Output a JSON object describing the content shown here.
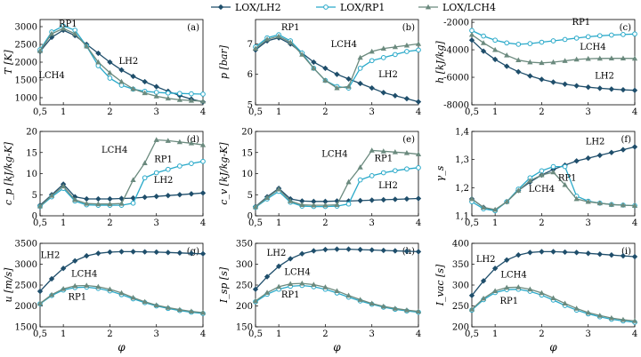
{
  "legend": {
    "items": [
      {
        "label": "LOX/LH2",
        "color": "#1f4e6b",
        "marker": "diamond"
      },
      {
        "label": "LOX/RP1",
        "color": "#29a9c9",
        "marker": "circle"
      },
      {
        "label": "LOX/LCH4",
        "color": "#6b8a7e",
        "marker": "triangle"
      }
    ]
  },
  "chart_data": [
    {
      "type": "line",
      "panel": "(a)",
      "ylabel": "T [K]",
      "xlabel": "",
      "xlim": [
        0.5,
        4
      ],
      "ylim": [
        800,
        3200
      ],
      "xticks": [
        "0,5",
        "1",
        "2",
        "3",
        "4"
      ],
      "yticks": [
        "1000",
        "1500",
        "2000",
        "2500",
        "3000"
      ],
      "x": [
        0.5,
        0.75,
        1.0,
        1.25,
        1.5,
        1.75,
        2.0,
        2.25,
        2.5,
        2.75,
        3.0,
        3.25,
        3.5,
        3.75,
        4.0
      ],
      "series": [
        {
          "name": "LOX/LH2",
          "values": [
            2300,
            2700,
            2900,
            2750,
            2500,
            2250,
            2000,
            1780,
            1600,
            1450,
            1310,
            1180,
            1060,
            960,
            880
          ]
        },
        {
          "name": "LOX/RP1",
          "values": [
            2350,
            2850,
            3020,
            2900,
            2450,
            1900,
            1550,
            1350,
            1240,
            1180,
            1150,
            1130,
            1120,
            1110,
            1100
          ]
        },
        {
          "name": "LOX/LCH4",
          "values": [
            2320,
            2800,
            2950,
            2800,
            2450,
            2000,
            1700,
            1450,
            1250,
            1130,
            1040,
            980,
            940,
            920,
            900
          ]
        }
      ],
      "labels": [
        {
          "text": "RP1",
          "x": 1.1,
          "y": 3000
        },
        {
          "text": "LH2",
          "x": 2.4,
          "y": 1950
        },
        {
          "text": "LCH4",
          "x": 0.75,
          "y": 1550
        }
      ]
    },
    {
      "type": "line",
      "panel": "(b)",
      "ylabel": "p [bar]",
      "xlabel": "",
      "xlim": [
        0.5,
        4
      ],
      "ylim": [
        5,
        7.8
      ],
      "xticks": [
        "0,5",
        "1",
        "2",
        "3",
        "4"
      ],
      "yticks": [
        "5",
        "6",
        "7"
      ],
      "x": [
        0.5,
        0.75,
        1.0,
        1.25,
        1.5,
        1.75,
        2.0,
        2.25,
        2.5,
        2.75,
        3.0,
        3.25,
        3.5,
        3.75,
        4.0
      ],
      "series": [
        {
          "name": "LOX/LH2",
          "values": [
            6.8,
            7.1,
            7.2,
            7.0,
            6.7,
            6.4,
            6.2,
            6.0,
            5.85,
            5.7,
            5.55,
            5.4,
            5.3,
            5.2,
            5.1
          ]
        },
        {
          "name": "LOX/RP1",
          "values": [
            6.9,
            7.2,
            7.3,
            7.1,
            6.7,
            6.2,
            5.8,
            5.6,
            5.55,
            6.2,
            6.45,
            6.55,
            6.65,
            6.75,
            6.8
          ]
        },
        {
          "name": "LOX/LCH4",
          "values": [
            6.85,
            7.15,
            7.25,
            7.05,
            6.65,
            6.2,
            5.8,
            5.55,
            5.6,
            6.55,
            6.75,
            6.85,
            6.9,
            6.95,
            7.0
          ]
        }
      ],
      "labels": [
        {
          "text": "RP1",
          "x": 1.25,
          "y": 7.45
        },
        {
          "text": "LCH4",
          "x": 2.4,
          "y": 6.9
        },
        {
          "text": "LH2",
          "x": 3.35,
          "y": 5.9
        }
      ]
    },
    {
      "type": "line",
      "panel": "(c)",
      "ylabel": "h [kJ/kg]",
      "xlabel": "",
      "xlim": [
        0.5,
        4
      ],
      "ylim": [
        -8000,
        -1800
      ],
      "xticks": [
        "0,5",
        "1",
        "2",
        "3",
        "4"
      ],
      "yticks": [
        "-8000",
        "-6000",
        "-4000",
        "-2000"
      ],
      "x": [
        0.5,
        0.75,
        1.0,
        1.25,
        1.5,
        1.75,
        2.0,
        2.25,
        2.5,
        2.75,
        3.0,
        3.25,
        3.5,
        3.75,
        4.0
      ],
      "series": [
        {
          "name": "LOX/LH2",
          "values": [
            -3300,
            -4100,
            -4700,
            -5200,
            -5600,
            -5900,
            -6150,
            -6350,
            -6500,
            -6620,
            -6720,
            -6800,
            -6860,
            -6910,
            -6950
          ]
        },
        {
          "name": "LOX/RP1",
          "values": [
            -2600,
            -3000,
            -3300,
            -3500,
            -3600,
            -3550,
            -3450,
            -3350,
            -3250,
            -3150,
            -3050,
            -2980,
            -2930,
            -2890,
            -2850
          ]
        },
        {
          "name": "LOX/LCH4",
          "values": [
            -2900,
            -3500,
            -4000,
            -4400,
            -4750,
            -4900,
            -4950,
            -4900,
            -4800,
            -4700,
            -4650,
            -4630,
            -4620,
            -4620,
            -4630
          ]
        }
      ],
      "labels": [
        {
          "text": "RP1",
          "x": 2.85,
          "y": -2200
        },
        {
          "text": "LCH4",
          "x": 3.1,
          "y": -4000
        },
        {
          "text": "LH2",
          "x": 3.35,
          "y": -6100
        }
      ]
    },
    {
      "type": "line",
      "panel": "(d)",
      "ylabel": "c_p [kJ/kg-K]",
      "xlabel": "",
      "xlim": [
        0.5,
        4
      ],
      "ylim": [
        0,
        20
      ],
      "xticks": [
        "0,5",
        "1",
        "2",
        "3",
        "4"
      ],
      "yticks": [
        "0",
        "5",
        "10",
        "15",
        "20"
      ],
      "x": [
        0.5,
        0.75,
        1.0,
        1.25,
        1.5,
        1.75,
        2.0,
        2.25,
        2.5,
        2.75,
        3.0,
        3.25,
        3.5,
        3.75,
        4.0
      ],
      "series": [
        {
          "name": "LOX/LH2",
          "values": [
            2.5,
            5.0,
            7.5,
            4.5,
            4.0,
            4.0,
            4.0,
            4.1,
            4.2,
            4.4,
            4.6,
            4.8,
            5.0,
            5.2,
            5.4
          ]
        },
        {
          "name": "LOX/RP1",
          "values": [
            2.2,
            4.5,
            6.5,
            3.5,
            2.6,
            2.5,
            2.5,
            2.5,
            3.0,
            9.0,
            10.2,
            11.0,
            11.8,
            12.4,
            12.9
          ]
        },
        {
          "name": "LOX/LCH4",
          "values": [
            2.3,
            4.8,
            7.0,
            3.8,
            2.9,
            2.8,
            2.8,
            2.9,
            8.5,
            12.5,
            18.0,
            17.8,
            17.5,
            17.2,
            16.8
          ]
        }
      ],
      "labels": [
        {
          "text": "LCH4",
          "x": 2.1,
          "y": 15.0
        },
        {
          "text": "RP1",
          "x": 3.15,
          "y": 12.7
        },
        {
          "text": "LH2",
          "x": 3.15,
          "y": 7.8
        }
      ]
    },
    {
      "type": "line",
      "panel": "(e)",
      "ylabel": "c_v [kJ/kg-K]",
      "xlabel": "",
      "xlim": [
        0.5,
        4
      ],
      "ylim": [
        0,
        20
      ],
      "xticks": [
        "0,5",
        "1",
        "2",
        "3",
        "4"
      ],
      "yticks": [
        "0",
        "5",
        "10",
        "15",
        "20"
      ],
      "x": [
        0.5,
        0.75,
        1.0,
        1.25,
        1.5,
        1.75,
        2.0,
        2.25,
        2.5,
        2.75,
        3.0,
        3.25,
        3.5,
        3.75,
        4.0
      ],
      "series": [
        {
          "name": "LOX/LH2",
          "values": [
            2.2,
            4.5,
            6.5,
            4.0,
            3.5,
            3.4,
            3.4,
            3.5,
            3.5,
            3.6,
            3.7,
            3.8,
            3.9,
            4.0,
            4.1
          ]
        },
        {
          "name": "LOX/RP1",
          "values": [
            2.0,
            4.0,
            5.8,
            3.2,
            2.3,
            2.2,
            2.2,
            2.3,
            2.8,
            8.5,
            9.5,
            10.2,
            10.7,
            11.1,
            11.4
          ]
        },
        {
          "name": "LOX/LCH4",
          "values": [
            2.1,
            4.3,
            6.3,
            3.5,
            2.6,
            2.5,
            2.5,
            2.6,
            8.0,
            11.5,
            15.5,
            15.3,
            15.1,
            14.9,
            14.6
          ]
        }
      ],
      "labels": [
        {
          "text": "LCH4",
          "x": 2.2,
          "y": 14.0
        },
        {
          "text": "RP1",
          "x": 3.25,
          "y": 13.0
        },
        {
          "text": "LH2",
          "x": 3.35,
          "y": 6.5
        }
      ]
    },
    {
      "type": "line",
      "panel": "(f)",
      "ylabel": "γ_s",
      "xlabel": "",
      "xlim": [
        0.5,
        4
      ],
      "ylim": [
        1.1,
        1.4
      ],
      "xticks": [
        "0,5",
        "1",
        "2",
        "3",
        "4"
      ],
      "yticks": [
        "1,1",
        "1,2",
        "1,3",
        "1,4"
      ],
      "x": [
        0.5,
        0.75,
        1.0,
        1.25,
        1.5,
        1.75,
        2.0,
        2.25,
        2.5,
        2.75,
        3.0,
        3.25,
        3.5,
        3.75,
        4.0
      ],
      "series": [
        {
          "name": "LOX/LH2",
          "values": [
            1.16,
            1.13,
            1.12,
            1.15,
            1.19,
            1.22,
            1.245,
            1.265,
            1.28,
            1.295,
            1.305,
            1.315,
            1.325,
            1.335,
            1.345
          ]
        },
        {
          "name": "LOX/RP1",
          "values": [
            1.15,
            1.125,
            1.118,
            1.15,
            1.195,
            1.235,
            1.26,
            1.275,
            1.275,
            1.17,
            1.152,
            1.145,
            1.14,
            1.138,
            1.136
          ]
        },
        {
          "name": "LOX/LCH4",
          "values": [
            1.16,
            1.13,
            1.122,
            1.15,
            1.19,
            1.225,
            1.245,
            1.255,
            1.21,
            1.16,
            1.15,
            1.145,
            1.14,
            1.138,
            1.136
          ]
        }
      ],
      "labels": [
        {
          "text": "LH2",
          "x": 3.15,
          "y": 1.355
        },
        {
          "text": "RP1",
          "x": 2.55,
          "y": 1.225
        },
        {
          "text": "LCH4",
          "x": 2.0,
          "y": 1.185
        }
      ]
    },
    {
      "type": "line",
      "panel": "(g)",
      "ylabel": "u [m/s]",
      "xlabel": "φ",
      "xlim": [
        0.5,
        4
      ],
      "ylim": [
        1500,
        3500
      ],
      "xticks": [
        "0,5",
        "1",
        "2",
        "3",
        "4"
      ],
      "yticks": [
        "1500",
        "2000",
        "2500",
        "3000",
        "3500"
      ],
      "x": [
        0.5,
        0.75,
        1.0,
        1.25,
        1.5,
        1.75,
        2.0,
        2.25,
        2.5,
        2.75,
        3.0,
        3.25,
        3.5,
        3.75,
        4.0
      ],
      "series": [
        {
          "name": "LOX/LH2",
          "values": [
            2350,
            2650,
            2900,
            3080,
            3200,
            3260,
            3290,
            3300,
            3300,
            3295,
            3290,
            3280,
            3270,
            3260,
            3250
          ]
        },
        {
          "name": "LOX/RP1",
          "values": [
            2050,
            2250,
            2380,
            2440,
            2450,
            2420,
            2360,
            2270,
            2170,
            2080,
            2000,
            1940,
            1890,
            1850,
            1820
          ]
        },
        {
          "name": "LOX/LCH4",
          "values": [
            2060,
            2270,
            2410,
            2480,
            2490,
            2460,
            2400,
            2310,
            2200,
            2100,
            2020,
            1960,
            1910,
            1870,
            1840
          ]
        }
      ],
      "labels": [
        {
          "text": "LH2",
          "x": 0.72,
          "y": 3150
        },
        {
          "text": "LCH4",
          "x": 1.45,
          "y": 2700
        },
        {
          "text": "RP1",
          "x": 1.3,
          "y": 2150
        }
      ]
    },
    {
      "type": "line",
      "panel": "(h)",
      "ylabel": "I_sp [s]",
      "xlabel": "φ",
      "xlim": [
        0.5,
        4
      ],
      "ylim": [
        150,
        350
      ],
      "xticks": [
        "0,5",
        "1",
        "2",
        "3",
        "4"
      ],
      "yticks": [
        "150",
        "200",
        "250",
        "300",
        "350"
      ],
      "x": [
        0.5,
        0.75,
        1.0,
        1.25,
        1.5,
        1.75,
        2.0,
        2.25,
        2.5,
        2.75,
        3.0,
        3.25,
        3.5,
        3.75,
        4.0
      ],
      "series": [
        {
          "name": "LOX/LH2",
          "values": [
            240,
            270,
            295,
            313,
            325,
            332,
            335,
            336,
            336,
            335,
            334,
            333,
            332,
            331,
            330
          ]
        },
        {
          "name": "LOX/RP1",
          "values": [
            210,
            228,
            240,
            247,
            249,
            246,
            240,
            231,
            221,
            212,
            204,
            197,
            192,
            188,
            185
          ]
        },
        {
          "name": "LOX/LCH4",
          "values": [
            212,
            232,
            246,
            253,
            254,
            251,
            245,
            236,
            225,
            215,
            206,
            199,
            194,
            190,
            187
          ]
        }
      ],
      "labels": [
        {
          "text": "LH2",
          "x": 0.95,
          "y": 320
        },
        {
          "text": "LCH4",
          "x": 1.4,
          "y": 275
        },
        {
          "text": "RP1",
          "x": 1.25,
          "y": 220
        }
      ]
    },
    {
      "type": "line",
      "panel": "(i)",
      "ylabel": "I_vac [s]",
      "xlabel": "φ",
      "xlim": [
        0.5,
        4
      ],
      "ylim": [
        200,
        400
      ],
      "xticks": [
        "0,5",
        "1",
        "2",
        "3",
        "4"
      ],
      "yticks": [
        "200",
        "250",
        "300",
        "350",
        "400"
      ],
      "x": [
        0.5,
        0.75,
        1.0,
        1.25,
        1.5,
        1.75,
        2.0,
        2.25,
        2.5,
        2.75,
        3.0,
        3.25,
        3.5,
        3.75,
        4.0
      ],
      "series": [
        {
          "name": "LOX/LH2",
          "values": [
            275,
            310,
            340,
            360,
            372,
            378,
            380,
            380,
            379,
            378,
            376,
            374,
            372,
            370,
            368
          ]
        },
        {
          "name": "LOX/RP1",
          "values": [
            240,
            265,
            282,
            289,
            290,
            285,
            276,
            264,
            251,
            240,
            231,
            224,
            218,
            214,
            211
          ]
        },
        {
          "name": "LOX/LCH4",
          "values": [
            242,
            268,
            286,
            294,
            295,
            290,
            281,
            269,
            256,
            244,
            234,
            227,
            221,
            217,
            214
          ]
        }
      ],
      "labels": [
        {
          "text": "LH2",
          "x": 0.8,
          "y": 355
        },
        {
          "text": "LCH4",
          "x": 1.4,
          "y": 318
        },
        {
          "text": "RP1",
          "x": 1.3,
          "y": 255
        }
      ]
    }
  ]
}
